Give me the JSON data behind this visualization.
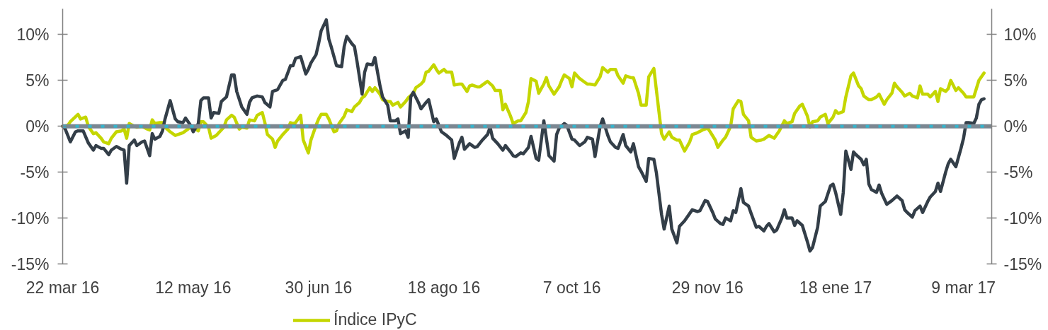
{
  "chart_data": {
    "type": "line",
    "xlim": [
      "2016-03-22",
      "2017-03-20"
    ],
    "xticks": [
      {
        "value": "2016-03-22",
        "label": "22 mar 16"
      },
      {
        "value": "2016-05-12",
        "label": "12 may 16"
      },
      {
        "value": "2016-06-30",
        "label": "30 jun 16"
      },
      {
        "value": "2016-08-18",
        "label": "18 ago 16"
      },
      {
        "value": "2016-10-07",
        "label": "7 oct 16"
      },
      {
        "value": "2016-11-29",
        "label": "29 nov 16"
      },
      {
        "value": "2017-01-18",
        "label": "18 ene 17"
      },
      {
        "value": "2017-03-09",
        "label": "9 mar 17"
      }
    ],
    "ylim": [
      -15,
      12.8
    ],
    "yticks": [
      {
        "value": -15,
        "label": "-15%"
      },
      {
        "value": -10,
        "label": "-10%"
      },
      {
        "value": -5,
        "label": "-5%"
      },
      {
        "value": 0,
        "label": "0%"
      },
      {
        "value": 5,
        "label": "5%"
      },
      {
        "value": 10,
        "label": "10%"
      }
    ],
    "y2lim": [
      -15,
      12.8
    ],
    "y2ticks": [
      {
        "value": -15,
        "label": "-15%"
      },
      {
        "value": -10,
        "label": "-10%"
      },
      {
        "value": -5,
        "label": "-5%"
      },
      {
        "value": 0,
        "label": "0%"
      },
      {
        "value": 5,
        "label": "5%"
      },
      {
        "value": 10,
        "label": "10%"
      }
    ],
    "legend": "bottom",
    "ref_lines": [
      {
        "axis": "y",
        "value": 0,
        "color": "#7b8792"
      },
      {
        "axis": "y",
        "value": 0,
        "color": "#35b3cb",
        "line_style": "dashed"
      }
    ],
    "series": [
      {
        "name": "Índice IPyC",
        "color": "#c4d600",
        "x": [
          "2016-03-22",
          "2016-03-24",
          "2016-03-25",
          "2016-03-28",
          "2016-03-29",
          "2016-03-31",
          "2016-04-01",
          "2016-04-03",
          "2016-04-04",
          "2016-04-06",
          "2016-04-07",
          "2016-04-09",
          "2016-04-10",
          "2016-04-12",
          "2016-04-14",
          "2016-04-15",
          "2016-04-16",
          "2016-04-17",
          "2016-04-19",
          "2016-04-20",
          "2016-04-22",
          "2016-04-24",
          "2016-04-25",
          "2016-04-26",
          "2016-04-27",
          "2016-04-29",
          "2016-04-30",
          "2016-05-01",
          "2016-05-03",
          "2016-05-05",
          "2016-05-07",
          "2016-05-08",
          "2016-05-10",
          "2016-05-11",
          "2016-05-13",
          "2016-05-14",
          "2016-05-15",
          "2016-05-16",
          "2016-05-18",
          "2016-05-19",
          "2016-05-21",
          "2016-05-22",
          "2016-05-24",
          "2016-05-25",
          "2016-05-27",
          "2016-05-28",
          "2016-05-30",
          "2016-05-31",
          "2016-06-02",
          "2016-06-03",
          "2016-06-05",
          "2016-06-06",
          "2016-06-08",
          "2016-06-09",
          "2016-06-10",
          "2016-06-12",
          "2016-06-13",
          "2016-06-14",
          "2016-06-16",
          "2016-06-17",
          "2016-06-18",
          "2016-06-19",
          "2016-06-20",
          "2016-06-21",
          "2016-06-23",
          "2016-06-24",
          "2016-06-26",
          "2016-06-27",
          "2016-06-29",
          "2016-06-30",
          "2016-07-01",
          "2016-07-03",
          "2016-07-04",
          "2016-07-06",
          "2016-07-07",
          "2016-07-08",
          "2016-07-10",
          "2016-07-11",
          "2016-07-13",
          "2016-07-14",
          "2016-07-16",
          "2016-07-17",
          "2016-07-18",
          "2016-07-20",
          "2016-07-21",
          "2016-07-22",
          "2016-07-24",
          "2016-07-25",
          "2016-07-27",
          "2016-07-28",
          "2016-07-29",
          "2016-07-31",
          "2016-08-01",
          "2016-08-03",
          "2016-08-04",
          "2016-08-06",
          "2016-08-07",
          "2016-08-09",
          "2016-08-10",
          "2016-08-11",
          "2016-08-12",
          "2016-08-14",
          "2016-08-15",
          "2016-08-16",
          "2016-08-18",
          "2016-08-19",
          "2016-08-21",
          "2016-08-22",
          "2016-08-24",
          "2016-08-25",
          "2016-08-27",
          "2016-08-28",
          "2016-08-29",
          "2016-08-31",
          "2016-09-01",
          "2016-09-03",
          "2016-09-04",
          "2016-09-06",
          "2016-09-07",
          "2016-09-09",
          "2016-09-10",
          "2016-09-11",
          "2016-09-13",
          "2016-09-14",
          "2016-09-16",
          "2016-09-17",
          "2016-09-19",
          "2016-09-20",
          "2016-09-21",
          "2016-09-23",
          "2016-09-24",
          "2016-09-26",
          "2016-09-27",
          "2016-09-28",
          "2016-09-30",
          "2016-10-02",
          "2016-10-03",
          "2016-10-04",
          "2016-10-06",
          "2016-10-07",
          "2016-10-08",
          "2016-10-10",
          "2016-10-11",
          "2016-10-13",
          "2016-10-14",
          "2016-10-16",
          "2016-10-18",
          "2016-10-19",
          "2016-10-21",
          "2016-10-22",
          "2016-10-24",
          "2016-10-25",
          "2016-10-27",
          "2016-10-28",
          "2016-10-30",
          "2016-10-31",
          "2016-11-02",
          "2016-11-03",
          "2016-11-05",
          "2016-11-06",
          "2016-11-08",
          "2016-11-09",
          "2016-11-11",
          "2016-11-12",
          "2016-11-14",
          "2016-11-15",
          "2016-11-17",
          "2016-11-18",
          "2016-11-20",
          "2016-11-22",
          "2016-11-23",
          "2016-11-25",
          "2016-11-27",
          "2016-11-29",
          "2016-11-30",
          "2016-12-02",
          "2016-12-03",
          "2016-12-05",
          "2016-12-06",
          "2016-12-08",
          "2016-12-09",
          "2016-12-11",
          "2016-12-12",
          "2016-12-13",
          "2016-12-15",
          "2016-12-16",
          "2016-12-18",
          "2016-12-20",
          "2016-12-21",
          "2016-12-23",
          "2016-12-25",
          "2016-12-27",
          "2016-12-29",
          "2016-12-30",
          "2017-01-01",
          "2017-01-02",
          "2017-01-04",
          "2017-01-05",
          "2017-01-07",
          "2017-01-08",
          "2017-01-09",
          "2017-01-11",
          "2017-01-12",
          "2017-01-14",
          "2017-01-15",
          "2017-01-17",
          "2017-01-18",
          "2017-01-19",
          "2017-01-21",
          "2017-01-22",
          "2017-01-24",
          "2017-01-25",
          "2017-01-27",
          "2017-01-28",
          "2017-01-29",
          "2017-01-31",
          "2017-02-01",
          "2017-02-03",
          "2017-02-04",
          "2017-02-06",
          "2017-02-07",
          "2017-02-09",
          "2017-02-10",
          "2017-02-11",
          "2017-02-13",
          "2017-02-14",
          "2017-02-16",
          "2017-02-17",
          "2017-02-19",
          "2017-02-20",
          "2017-02-21",
          "2017-02-23",
          "2017-02-24",
          "2017-02-26",
          "2017-02-27",
          "2017-02-28",
          "2017-03-02",
          "2017-03-03",
          "2017-03-04",
          "2017-03-06",
          "2017-03-07",
          "2017-03-09",
          "2017-03-10",
          "2017-03-12",
          "2017-03-13",
          "2017-03-14",
          "2017-03-15",
          "2017-03-17"
        ],
        "values": [
          0.0,
          0.1,
          0.5,
          1.3,
          0.8,
          1.0,
          0.0,
          -0.8,
          -0.7,
          -1.3,
          -1.7,
          -1.9,
          -1.3,
          -0.6,
          -0.5,
          -0.3,
          -1.3,
          0.3,
          0.0,
          -0.1,
          0.0,
          -0.3,
          -0.4,
          0.7,
          0.3,
          0.4,
          0.4,
          -0.1,
          -0.6,
          -1.0,
          -0.8,
          -0.7,
          -0.3,
          0.0,
          -0.3,
          -0.5,
          0.5,
          0.5,
          -0.1,
          -1.3,
          -1.0,
          -0.7,
          -0.1,
          0.7,
          1.2,
          1.0,
          -0.3,
          -0.1,
          -0.2,
          0.7,
          0.6,
          1.2,
          1.5,
          0.4,
          -0.9,
          -1.4,
          -2.3,
          -1.6,
          -0.9,
          -0.6,
          -0.3,
          0.4,
          0.3,
          0.4,
          1.2,
          -1.5,
          -2.9,
          -1.5,
          0.1,
          0.8,
          1.3,
          1.3,
          0.8,
          -0.6,
          -0.5,
          0.3,
          1.1,
          1.8,
          1.6,
          2.1,
          2.6,
          3.1,
          3.3,
          4.2,
          3.8,
          4.2,
          3.5,
          2.9,
          2.7,
          2.7,
          2.3,
          2.6,
          2.1,
          2.7,
          3.1,
          3.6,
          4.2,
          4.6,
          4.9,
          5.9,
          6.0,
          6.7,
          6.2,
          5.8,
          6.2,
          5.9,
          5.9,
          4.5,
          4.6,
          4.6,
          3.8,
          4.4,
          4.5,
          4.3,
          4.3,
          4.7,
          4.9,
          4.4,
          3.9,
          3.9,
          1.8,
          2.4,
          1.1,
          0.3,
          0.6,
          0.6,
          1.5,
          2.7,
          5.2,
          4.9,
          3.6,
          4.6,
          5.3,
          4.4,
          3.5,
          4.3,
          5.0,
          5.6,
          5.2,
          4.3,
          5.8,
          5.2,
          5.0,
          4.6,
          4.6,
          4.5,
          5.4,
          6.4,
          5.9,
          6.2,
          6.2,
          5.5,
          4.7,
          5.5,
          5.3,
          5.3,
          3.6,
          2.3,
          2.3,
          5.4,
          6.3,
          3.9,
          -0.8,
          -1.4,
          -0.6,
          -1.2,
          -1.5,
          -1.5,
          -2.7,
          -1.7,
          -0.9,
          -0.7,
          -0.4,
          -0.2,
          -0.6,
          -1.5,
          -2.3,
          -1.5,
          -1.2,
          0.0,
          1.9,
          2.8,
          2.7,
          1.3,
          0.6,
          -1.2,
          -1.6,
          -1.5,
          -1.4,
          -1.0,
          -1.3,
          -0.5,
          0.6,
          0.3,
          0.5,
          1.4,
          2.2,
          2.4,
          1.1,
          -0.1,
          0.5,
          0.6,
          1.0,
          1.3,
          0.3,
          1.0,
          1.7,
          1.4,
          1.6,
          3.2,
          5.5,
          5.8,
          4.4,
          4.1,
          3.3,
          2.9,
          2.9,
          3.2,
          3.5,
          2.4,
          2.9,
          3.6,
          4.7,
          4.3,
          3.7,
          3.3,
          3.6,
          3.3,
          3.1,
          4.4,
          3.5,
          3.5,
          3.2,
          3.8,
          2.7,
          4.1,
          3.8,
          4.1,
          5.0,
          3.9,
          4.2,
          3.6,
          3.2,
          3.2,
          3.2,
          4.1,
          5.0,
          5.8
        ]
      },
      {
        "color": "#333e48",
        "x": [
          "2016-03-22",
          "2016-03-23",
          "2016-03-25",
          "2016-03-27",
          "2016-03-28",
          "2016-03-30",
          "2016-04-01",
          "2016-04-03",
          "2016-04-04",
          "2016-04-06",
          "2016-04-07",
          "2016-04-09",
          "2016-04-10",
          "2016-04-12",
          "2016-04-14",
          "2016-04-15",
          "2016-04-16",
          "2016-04-17",
          "2016-04-19",
          "2016-04-20",
          "2016-04-22",
          "2016-04-23",
          "2016-04-25",
          "2016-04-26",
          "2016-04-27",
          "2016-04-29",
          "2016-04-30",
          "2016-05-01",
          "2016-05-03",
          "2016-05-05",
          "2016-05-06",
          "2016-05-08",
          "2016-05-09",
          "2016-05-11",
          "2016-05-12",
          "2016-05-14",
          "2016-05-15",
          "2016-05-16",
          "2016-05-18",
          "2016-05-19",
          "2016-05-20",
          "2016-05-22",
          "2016-05-23",
          "2016-05-25",
          "2016-05-27",
          "2016-05-28",
          "2016-05-29",
          "2016-05-31",
          "2016-06-02",
          "2016-06-03",
          "2016-06-04",
          "2016-06-06",
          "2016-06-08",
          "2016-06-09",
          "2016-06-11",
          "2016-06-12",
          "2016-06-14",
          "2016-06-15",
          "2016-06-16",
          "2016-06-17",
          "2016-06-19",
          "2016-06-20",
          "2016-06-21",
          "2016-06-23",
          "2016-06-25",
          "2016-06-26",
          "2016-06-27",
          "2016-06-29",
          "2016-06-30",
          "2016-07-01",
          "2016-07-03",
          "2016-07-04",
          "2016-07-05",
          "2016-07-07",
          "2016-07-09",
          "2016-07-10",
          "2016-07-11",
          "2016-07-13",
          "2016-07-14",
          "2016-07-15",
          "2016-07-17",
          "2016-07-18",
          "2016-07-19",
          "2016-07-21",
          "2016-07-22",
          "2016-07-24",
          "2016-07-25",
          "2016-07-27",
          "2016-07-28",
          "2016-07-30",
          "2016-07-31",
          "2016-08-01",
          "2016-08-03",
          "2016-08-04",
          "2016-08-05",
          "2016-08-06",
          "2016-08-08",
          "2016-08-09",
          "2016-08-11",
          "2016-08-12",
          "2016-08-14",
          "2016-08-15",
          "2016-08-17",
          "2016-08-19",
          "2016-08-21",
          "2016-08-22",
          "2016-08-24",
          "2016-08-25",
          "2016-08-26",
          "2016-08-28",
          "2016-08-30",
          "2016-08-31",
          "2016-09-02",
          "2016-09-04",
          "2016-09-05",
          "2016-09-06",
          "2016-09-08",
          "2016-09-10",
          "2016-09-11",
          "2016-09-13",
          "2016-09-14",
          "2016-09-15",
          "2016-09-17",
          "2016-09-18",
          "2016-09-20",
          "2016-09-21",
          "2016-09-23",
          "2016-09-24",
          "2016-09-26",
          "2016-09-27",
          "2016-09-28",
          "2016-09-30",
          "2016-10-01",
          "2016-10-02",
          "2016-10-04",
          "2016-10-05",
          "2016-10-07",
          "2016-10-08",
          "2016-10-10",
          "2016-10-12",
          "2016-10-13",
          "2016-10-15",
          "2016-10-16",
          "2016-10-18",
          "2016-10-19",
          "2016-10-21",
          "2016-10-22",
          "2016-10-24",
          "2016-10-25",
          "2016-10-27",
          "2016-10-28",
          "2016-10-30",
          "2016-10-31",
          "2016-11-02",
          "2016-11-03",
          "2016-11-05",
          "2016-11-06",
          "2016-11-08",
          "2016-11-09",
          "2016-11-11",
          "2016-11-12",
          "2016-11-14",
          "2016-11-15",
          "2016-11-17",
          "2016-11-18",
          "2016-11-20",
          "2016-11-23",
          "2016-11-25",
          "2016-11-26",
          "2016-11-28",
          "2016-11-29",
          "2016-12-01",
          "2016-12-02",
          "2016-12-04",
          "2016-12-05",
          "2016-12-06",
          "2016-12-08",
          "2016-12-09",
          "2016-12-10",
          "2016-12-12",
          "2016-12-13",
          "2016-12-15",
          "2016-12-16",
          "2016-12-18",
          "2016-12-19",
          "2016-12-21",
          "2016-12-22",
          "2016-12-23",
          "2016-12-25",
          "2016-12-26",
          "2016-12-28",
          "2016-12-29",
          "2016-12-30",
          "2017-01-01",
          "2017-01-02",
          "2017-01-03",
          "2017-01-05",
          "2017-01-07",
          "2017-01-08",
          "2017-01-09",
          "2017-01-11",
          "2017-01-12",
          "2017-01-14",
          "2017-01-16",
          "2017-01-17",
          "2017-01-18",
          "2017-01-20",
          "2017-01-21",
          "2017-01-22",
          "2017-01-24",
          "2017-01-25",
          "2017-01-26",
          "2017-01-28",
          "2017-01-29",
          "2017-01-30",
          "2017-01-31",
          "2017-02-01",
          "2017-02-03",
          "2017-02-04",
          "2017-02-05",
          "2017-02-07",
          "2017-02-09",
          "2017-02-11",
          "2017-02-13",
          "2017-02-14",
          "2017-02-15",
          "2017-02-17",
          "2017-02-18",
          "2017-02-20",
          "2017-02-21",
          "2017-02-23",
          "2017-02-24",
          "2017-02-26",
          "2017-02-27",
          "2017-02-28",
          "2017-03-02",
          "2017-03-03",
          "2017-03-04",
          "2017-03-06",
          "2017-03-08",
          "2017-03-09",
          "2017-03-10",
          "2017-03-11",
          "2017-03-13",
          "2017-03-14",
          "2017-03-15",
          "2017-03-16",
          "2017-03-17"
        ],
        "values": [
          0.0,
          -0.3,
          -1.7,
          -0.6,
          -0.5,
          -0.5,
          -1.8,
          -2.6,
          -2.1,
          -2.4,
          -2.4,
          -3.1,
          -2.6,
          -2.2,
          -2.5,
          -2.6,
          -6.2,
          -2.1,
          -1.5,
          -2.1,
          -1.7,
          -1.6,
          -3.2,
          -0.8,
          -1.4,
          -1.1,
          -0.5,
          0.8,
          2.8,
          0.8,
          0.5,
          0.4,
          0.9,
          0.1,
          -0.6,
          0.3,
          2.8,
          3.1,
          3.1,
          0.9,
          1.5,
          1.4,
          2.7,
          3.2,
          5.6,
          5.6,
          3.8,
          2.1,
          1.3,
          2.6,
          3.1,
          3.3,
          3.2,
          2.6,
          2.1,
          3.8,
          4.0,
          4.5,
          5.0,
          5.1,
          6.6,
          6.6,
          7.4,
          7.6,
          5.7,
          6.2,
          6.9,
          7.8,
          9.0,
          10.4,
          11.6,
          9.5,
          8.6,
          6.6,
          6.5,
          8.7,
          9.8,
          9.0,
          8.7,
          7.1,
          3.5,
          5.9,
          6.8,
          6.7,
          7.5,
          4.4,
          3.2,
          2.3,
          0.6,
          0.6,
          0.8,
          -0.8,
          -0.5,
          -1.2,
          3.2,
          3.7,
          2.6,
          1.9,
          2.6,
          2.9,
          0.5,
          0.8,
          -0.6,
          -1.0,
          -1.5,
          -3.5,
          -1.8,
          -1.2,
          -2.5,
          -1.9,
          -2.3,
          -2.2,
          -1.5,
          -0.9,
          -0.1,
          -1.3,
          -1.9,
          -2.6,
          -2.1,
          -2.8,
          -3.2,
          -3.3,
          -2.9,
          -3.0,
          -2.3,
          -1.1,
          -3.5,
          -3.7,
          0.6,
          -1.3,
          -3.2,
          -3.8,
          -0.9,
          -0.2,
          0.3,
          0.1,
          -1.4,
          -1.5,
          -2.1,
          -1.7,
          -1.2,
          -1.4,
          -3.3,
          0.0,
          0.8,
          -1.0,
          -1.7,
          -2.3,
          -2.4,
          -0.9,
          -2.1,
          -2.8,
          -1.9,
          -4.4,
          -4.9,
          -6.0,
          -3.5,
          -3.6,
          -5.1,
          -9.6,
          -11.2,
          -8.7,
          -11.2,
          -12.7,
          -10.9,
          -10.3,
          -9.1,
          -9.3,
          -9.2,
          -8.1,
          -8.2,
          -9.4,
          -10.1,
          -10.6,
          -10.7,
          -10.0,
          -10.3,
          -9.2,
          -9.4,
          -6.8,
          -8.3,
          -8.7,
          -9.5,
          -11.0,
          -10.9,
          -11.4,
          -10.9,
          -10.6,
          -11.5,
          -11.3,
          -10.0,
          -9.1,
          -10.0,
          -10.0,
          -10.8,
          -10.3,
          -10.8,
          -12.6,
          -13.6,
          -13.2,
          -11.0,
          -8.7,
          -8.2,
          -6.5,
          -6.3,
          -7.2,
          -9.6,
          -7.2,
          -2.7,
          -4.7,
          -2.8,
          -3.1,
          -3.6,
          -4.2,
          -3.6,
          -6.3,
          -6.9,
          -7.2,
          -6.4,
          -7.3,
          -8.5,
          -8.1,
          -7.6,
          -8.1,
          -9.1,
          -9.4,
          -9.9,
          -9.2,
          -8.7,
          -9.4,
          -8.2,
          -7.7,
          -7.1,
          -6.2,
          -7.1,
          -5.0,
          -4.1,
          -3.6,
          -4.4,
          -2.4,
          -1.3,
          0.4,
          0.4,
          0.3,
          0.9,
          2.4,
          2.9,
          3.0
        ]
      }
    ]
  }
}
